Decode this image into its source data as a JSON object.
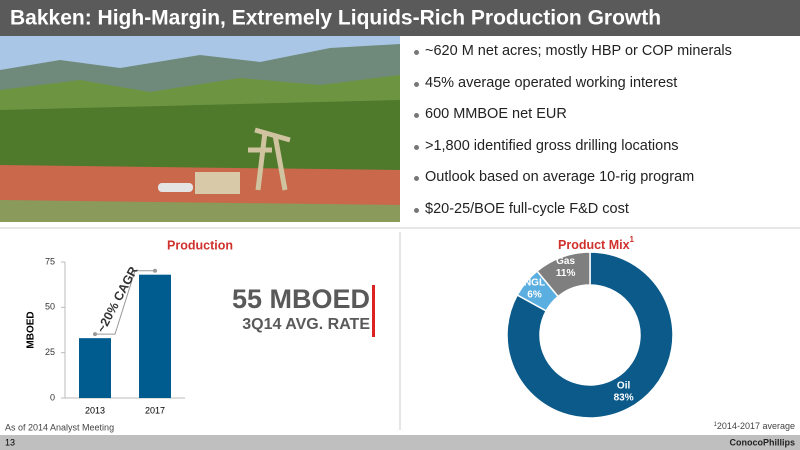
{
  "title": "Bakken: High-Margin, Extremely Liquids-Rich Production Growth",
  "bullets": [
    "~620 M net acres; mostly HBP or COP minerals",
    "45% average operated working interest",
    "600 MMBOE net EUR",
    ">1,800 identified gross drilling locations",
    "Outlook based on average 10-rig program",
    "$20-25/BOE full-cycle F&D cost"
  ],
  "headline": "55 MBOED",
  "headline_sub": "3Q14 AVG. RATE",
  "chart_data": [
    {
      "type": "bar",
      "title": "Production",
      "y_label": "MBOED",
      "annotation": "~20% CAGR",
      "categories": [
        "2013",
        "2017"
      ],
      "values": [
        33,
        68
      ],
      "color": "#005b8f",
      "ylim": [
        0,
        75
      ],
      "yticks": [
        0,
        25,
        50,
        75
      ]
    },
    {
      "type": "pie",
      "title": "Product Mix",
      "title_marker": "1",
      "categories": [
        "Oil",
        "NGL",
        "Gas"
      ],
      "values": [
        83,
        6,
        11
      ],
      "value_labels": [
        "83%",
        "6%",
        "11%"
      ],
      "colors": [
        "#0b5a8a",
        "#5aaee0",
        "#7f7f7f"
      ]
    }
  ],
  "source": "As of 2014 Analyst Meeting",
  "footnote_marker": "1",
  "footnote": "2014-2017 average",
  "page_number": "13",
  "logo": "ConocoPhillips"
}
